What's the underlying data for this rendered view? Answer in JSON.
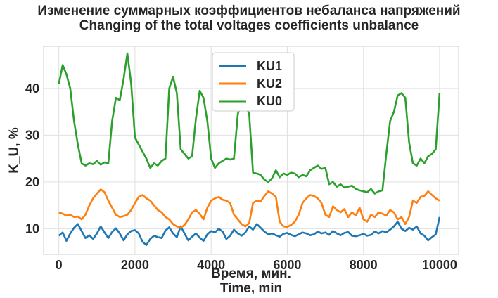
{
  "chart_data": {
    "type": "line",
    "title": "Изменение суммарных коэффициентов небаланса напряжений",
    "subtitle": "Changing of the total voltages coefficients unbalance",
    "xlabel": "Время, мин.",
    "xlabel2": "Time, min",
    "ylabel": "K_U, %",
    "xlim": [
      -400,
      10500
    ],
    "ylim": [
      4.5,
      49
    ],
    "xticks": [
      0,
      2000,
      4000,
      6000,
      8000,
      10000
    ],
    "yticks": [
      10,
      20,
      30,
      40
    ],
    "grid": true,
    "legend_position": "top-center",
    "x": [
      0,
      100,
      200,
      300,
      400,
      500,
      600,
      700,
      800,
      900,
      1000,
      1100,
      1200,
      1300,
      1400,
      1500,
      1600,
      1700,
      1800,
      1900,
      2000,
      2100,
      2200,
      2300,
      2400,
      2500,
      2600,
      2700,
      2800,
      2900,
      3000,
      3100,
      3200,
      3300,
      3400,
      3500,
      3600,
      3700,
      3800,
      3900,
      4000,
      4100,
      4200,
      4300,
      4400,
      4500,
      4600,
      4700,
      4800,
      4900,
      5000,
      5100,
      5200,
      5300,
      5400,
      5500,
      5600,
      5700,
      5800,
      5900,
      6000,
      6100,
      6200,
      6300,
      6400,
      6500,
      6600,
      6700,
      6800,
      6900,
      7000,
      7100,
      7200,
      7300,
      7400,
      7500,
      7600,
      7700,
      7800,
      7900,
      8000,
      8100,
      8200,
      8300,
      8400,
      8500,
      8600,
      8700,
      8800,
      8900,
      9000,
      9100,
      9200,
      9300,
      9400,
      9500,
      9600,
      9700,
      9800,
      9900,
      10000
    ],
    "series": [
      {
        "name": "KU1",
        "color": "#1f77b4",
        "values": [
          8.5,
          9.2,
          7.4,
          9.0,
          10.2,
          11.0,
          9.5,
          8.0,
          8.6,
          7.8,
          9.0,
          10.5,
          9.2,
          8.0,
          9.3,
          10.1,
          9.0,
          7.5,
          8.8,
          9.5,
          9.7,
          9.0,
          7.2,
          6.5,
          7.8,
          8.5,
          8.2,
          8.0,
          9.6,
          10.3,
          9.0,
          8.2,
          10.5,
          9.0,
          7.5,
          8.3,
          9.0,
          8.1,
          7.4,
          8.8,
          9.5,
          9.2,
          10.0,
          9.4,
          7.8,
          8.5,
          9.8,
          9.0,
          8.5,
          9.2,
          10.5,
          9.8,
          11.0,
          10.2,
          9.4,
          8.8,
          9.0,
          8.6,
          8.3,
          8.9,
          9.1,
          8.7,
          8.4,
          8.8,
          9.2,
          9.0,
          8.6,
          8.8,
          9.4,
          9.0,
          9.2,
          8.7,
          9.5,
          9.0,
          8.6,
          9.1,
          9.3,
          8.5,
          8.4,
          8.6,
          8.9,
          8.5,
          8.7,
          9.4,
          9.0,
          9.5,
          9.2,
          9.8,
          10.5,
          11.5,
          10.0,
          9.5,
          10.2,
          9.8,
          10.5,
          9.0,
          8.5,
          7.5,
          8.2,
          8.8,
          12.5
        ]
      },
      {
        "name": "KU2",
        "color": "#ff7f0e",
        "values": [
          13.5,
          13.2,
          12.8,
          13.0,
          12.5,
          12.6,
          12.0,
          13.0,
          15.0,
          16.5,
          17.5,
          18.4,
          17.8,
          16.0,
          14.5,
          13.0,
          12.5,
          12.7,
          13.0,
          14.0,
          15.5,
          16.8,
          17.2,
          16.5,
          16.0,
          15.0,
          14.0,
          13.5,
          12.5,
          12.0,
          11.0,
          10.5,
          10.2,
          10.8,
          12.0,
          13.5,
          14.0,
          13.2,
          12.0,
          14.5,
          16.0,
          16.5,
          16.8,
          16.2,
          16.0,
          15.5,
          13.0,
          12.0,
          11.0,
          10.5,
          11.2,
          15.5,
          16.0,
          15.8,
          17.0,
          18.0,
          17.5,
          16.8,
          11.5,
          10.5,
          10.4,
          10.8,
          11.5,
          13.0,
          15.5,
          16.5,
          17.2,
          17.0,
          16.5,
          15.5,
          13.0,
          12.5,
          14.8,
          14.0,
          13.5,
          14.2,
          12.5,
          13.5,
          12.8,
          14.5,
          12.0,
          11.5,
          13.0,
          12.5,
          13.5,
          13.2,
          12.8,
          14.0,
          13.5,
          12.0,
          12.5,
          11.0,
          12.5,
          16.0,
          15.5,
          16.8,
          17.0,
          18.0,
          17.2,
          16.5,
          16.0
        ]
      },
      {
        "name": "KU0",
        "color": "#2ca02c",
        "values": [
          41.0,
          45.0,
          43.0,
          40.0,
          33.0,
          28.0,
          24.0,
          23.5,
          24.0,
          23.8,
          24.5,
          23.7,
          24.2,
          24.0,
          33.0,
          38.0,
          37.5,
          42.0,
          47.5,
          41.0,
          29.5,
          28.0,
          26.5,
          25.0,
          23.0,
          24.0,
          23.5,
          24.5,
          25.0,
          40.0,
          42.5,
          39.0,
          27.0,
          26.0,
          25.0,
          25.5,
          33.5,
          39.5,
          38.0,
          33.0,
          25.0,
          23.0,
          24.0,
          24.5,
          25.0,
          24.8,
          25.0,
          34.5,
          37.0,
          36.5,
          34.5,
          22.0,
          21.8,
          21.5,
          20.5,
          20.0,
          20.8,
          22.5,
          21.0,
          21.8,
          21.5,
          22.0,
          21.8,
          21.0,
          21.5,
          21.2,
          22.5,
          23.0,
          23.5,
          22.8,
          23.0,
          19.5,
          20.0,
          19.0,
          19.5,
          18.8,
          19.0,
          19.2,
          18.5,
          18.2,
          18.0,
          17.8,
          18.5,
          17.5,
          18.0,
          18.2,
          26.0,
          33.0,
          35.0,
          38.5,
          39.0,
          38.0,
          28.5,
          24.0,
          23.5,
          25.0,
          24.0,
          25.5,
          26.0,
          27.0,
          39.0
        ]
      }
    ]
  }
}
